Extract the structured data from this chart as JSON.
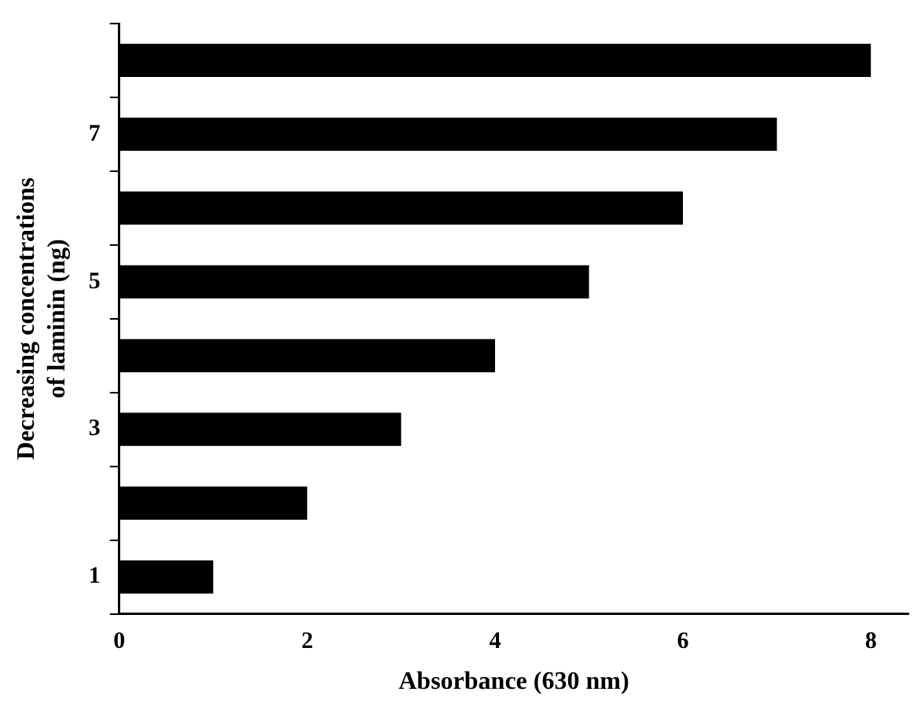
{
  "chart_data": {
    "type": "bar",
    "orientation": "horizontal",
    "xlabel": "Absorbance (630 nm)",
    "ylabel": "Decreasing concentrations\nof laminin (ng)",
    "categories": [
      null,
      "7",
      null,
      "5",
      null,
      "3",
      null,
      "1"
    ],
    "values": [
      8,
      7,
      6,
      5,
      4,
      3,
      2,
      1
    ],
    "color": "#000000",
    "xlim": [
      0,
      8.4
    ],
    "xticks": [
      0,
      2,
      4,
      6,
      8
    ],
    "grid": false,
    "legend": false
  }
}
